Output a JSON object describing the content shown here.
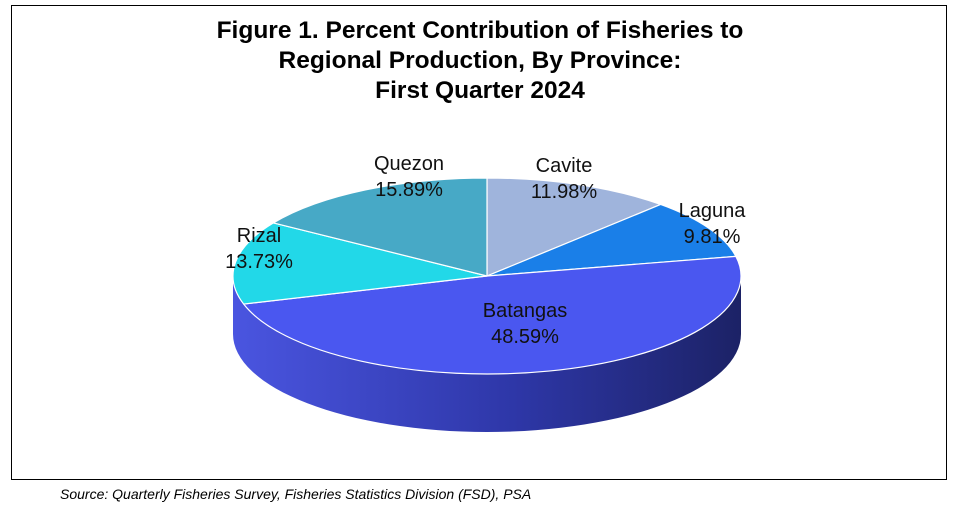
{
  "chart_data": {
    "type": "pie",
    "style": "3d",
    "title": {
      "line1": "Figure 1. Percent Contribution of Fisheries to",
      "line2": "Regional Production, By Province:",
      "line3": "First Quarter 2024"
    },
    "slices": [
      {
        "name": "Cavite",
        "value": 11.98,
        "label": "11.98%",
        "color": "#9fb4dc"
      },
      {
        "name": "Laguna",
        "value": 9.81,
        "label": "9.81%",
        "color": "#1a7fe8"
      },
      {
        "name": "Batangas",
        "value": 48.59,
        "label": "48.59%",
        "color": "#4a57f0"
      },
      {
        "name": "Rizal",
        "value": 13.73,
        "label": "13.73%",
        "color": "#22d8e8"
      },
      {
        "name": "Quezon",
        "value": 15.89,
        "label": "15.89%",
        "color": "#47a9c6"
      }
    ],
    "start_direction": "top",
    "order": "clockwise",
    "side_colors": {
      "dark": "#1c2266",
      "light": "#4a55e0"
    }
  },
  "source_text": "Source: Quarterly Fisheries Survey, Fisheries Statistics Division (FSD), PSA"
}
